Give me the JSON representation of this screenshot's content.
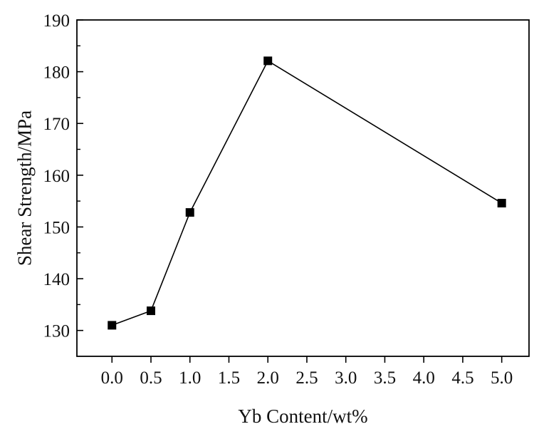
{
  "chart_data": {
    "type": "line",
    "title": "",
    "xlabel": "Yb Content/wt%",
    "ylabel": "Shear Strength/MPa",
    "xlim": [
      -0.45,
      5.35
    ],
    "ylim": [
      125,
      190
    ],
    "x_ticks": [
      "0.0",
      "0.5",
      "1.0",
      "1.5",
      "2.0",
      "2.5",
      "3.0",
      "3.5",
      "4.0",
      "4.5",
      "5.0"
    ],
    "x_tick_values": [
      0.0,
      0.5,
      1.0,
      1.5,
      2.0,
      2.5,
      3.0,
      3.5,
      4.0,
      4.5,
      5.0
    ],
    "y_ticks": [
      "130",
      "140",
      "150",
      "160",
      "170",
      "180",
      "190"
    ],
    "y_tick_values": [
      130,
      140,
      150,
      160,
      170,
      180,
      190
    ],
    "grid": false,
    "series": [
      {
        "name": "",
        "x": [
          0.0,
          0.5,
          1.0,
          2.0,
          5.0
        ],
        "y": [
          131.0,
          133.8,
          152.8,
          182.1,
          154.6
        ],
        "marker": "square",
        "color": "#000000"
      }
    ]
  }
}
